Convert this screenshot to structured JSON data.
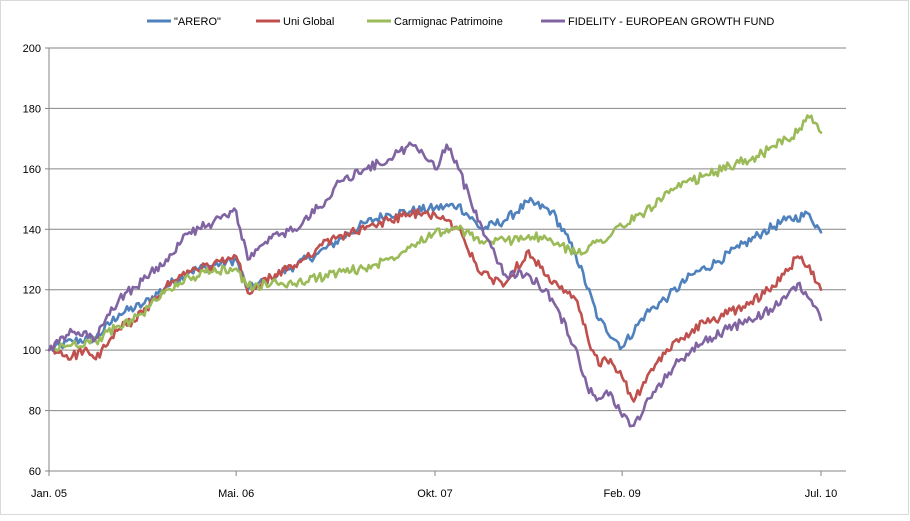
{
  "chart_data": {
    "type": "line",
    "title": "",
    "xlabel": "",
    "ylabel": "",
    "ylim": [
      60,
      200
    ],
    "yticks": [
      "60",
      "80",
      "100",
      "120",
      "140",
      "160",
      "180",
      "200"
    ],
    "ytick_values": [
      60,
      80,
      100,
      120,
      140,
      160,
      180,
      200
    ],
    "xlim": [
      0,
      66
    ],
    "xticks": [
      {
        "label": "Jan. 05",
        "x": 0
      },
      {
        "label": "Mai. 06",
        "x": 16
      },
      {
        "label": "Okt. 07",
        "x": 33
      },
      {
        "label": "Feb. 09",
        "x": 49
      },
      {
        "label": "Jul. 10",
        "x": 66
      }
    ],
    "grid": true,
    "legend_position": "top",
    "series": [
      {
        "name": "\"ARERO\"",
        "color": "#4f81bd",
        "x": [
          0,
          2,
          4,
          6,
          8,
          10,
          12,
          14,
          16,
          17,
          19,
          21,
          23,
          25,
          27,
          29,
          31,
          33,
          35,
          37,
          39,
          41,
          43,
          45,
          47,
          49,
          51,
          53,
          55,
          57,
          59,
          61,
          63,
          65,
          66
        ],
        "values": [
          100,
          103,
          104,
          112,
          115,
          121,
          126,
          128,
          130,
          120,
          124,
          128,
          132,
          137,
          142,
          145,
          146,
          147,
          148,
          140,
          143,
          149,
          146,
          132,
          110,
          101,
          112,
          118,
          125,
          129,
          134,
          139,
          143,
          145,
          139
        ]
      },
      {
        "name": "Uni Global",
        "color": "#c0504d",
        "x": [
          0,
          2,
          3,
          4,
          6,
          8,
          10,
          12,
          14,
          16,
          17,
          19,
          21,
          23,
          25,
          27,
          29,
          31,
          33,
          35,
          37,
          39,
          41,
          43,
          45,
          46,
          47,
          48,
          49,
          50,
          52,
          54,
          56,
          58,
          60,
          62,
          64,
          65,
          66
        ],
        "values": [
          100,
          98,
          100,
          97,
          107,
          112,
          121,
          126,
          128,
          131,
          119,
          124,
          128,
          134,
          138,
          140,
          143,
          145,
          145,
          140,
          125,
          122,
          133,
          122,
          117,
          105,
          95,
          97,
          91,
          83,
          96,
          104,
          109,
          112,
          116,
          121,
          131,
          128,
          120
        ]
      },
      {
        "name": "Carmignac Patrimoine",
        "color": "#9bbb59",
        "x": [
          0,
          2,
          4,
          6,
          8,
          10,
          12,
          14,
          16,
          17,
          19,
          21,
          23,
          25,
          27,
          29,
          31,
          33,
          35,
          37,
          39,
          41,
          43,
          45,
          47,
          49,
          51,
          53,
          55,
          57,
          59,
          61,
          63,
          64,
          65,
          66
        ],
        "values": [
          100,
          102,
          103,
          108,
          112,
          120,
          124,
          126,
          127,
          121,
          122,
          122,
          124,
          126,
          127,
          130,
          135,
          139,
          140,
          136,
          136,
          138,
          136,
          132,
          136,
          141,
          146,
          152,
          156,
          159,
          162,
          165,
          170,
          172,
          177,
          172
        ]
      },
      {
        "name": "FIDELITY - EUROPEAN GROWTH FUND",
        "color": "#8064a2",
        "x": [
          0,
          2,
          4,
          6,
          8,
          10,
          12,
          14,
          16,
          17,
          19,
          21,
          23,
          25,
          27,
          29,
          31,
          32,
          33,
          34,
          35,
          36,
          37,
          39,
          41,
          43,
          45,
          46,
          47,
          48,
          49,
          50,
          52,
          54,
          56,
          58,
          60,
          62,
          64,
          65,
          66
        ],
        "values": [
          100,
          106,
          104,
          117,
          123,
          130,
          139,
          142,
          146,
          130,
          137,
          140,
          147,
          156,
          160,
          163,
          168,
          165,
          160,
          168,
          160,
          150,
          141,
          125,
          125,
          117,
          101,
          88,
          84,
          86,
          78,
          75,
          88,
          97,
          103,
          107,
          110,
          114,
          122,
          117,
          110
        ]
      }
    ]
  }
}
